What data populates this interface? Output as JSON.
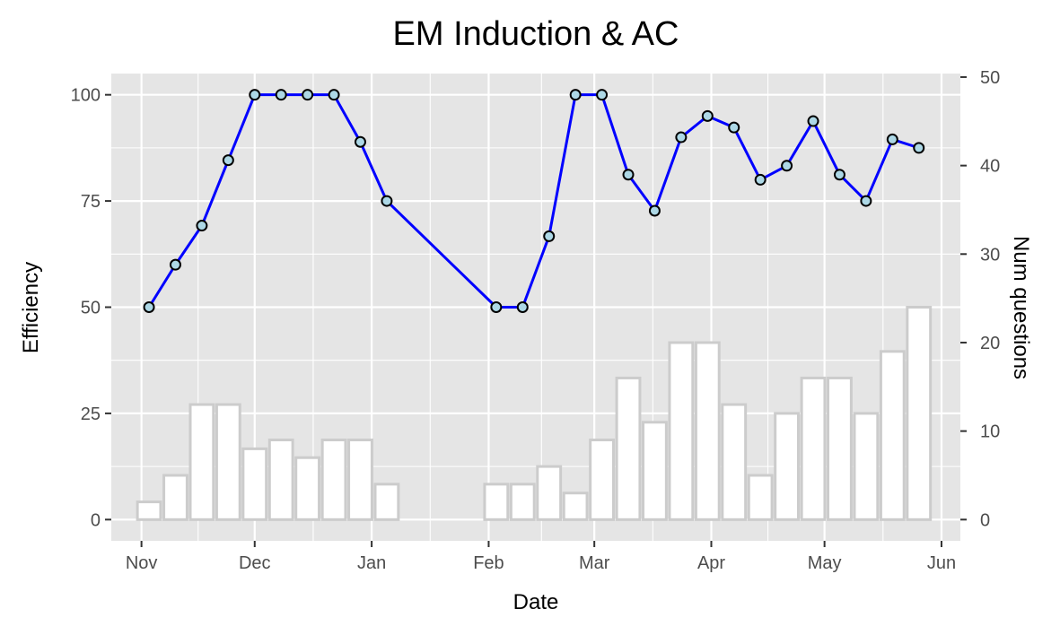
{
  "chart_data": {
    "type": "line+bar",
    "title": "EM Induction & AC",
    "xlabel": "Date",
    "ylabel": "Efficiency",
    "y2label": "Num questions",
    "x_ticks": [
      "Nov",
      "Dec",
      "Jan",
      "Feb",
      "Mar",
      "Apr",
      "May",
      "Jun"
    ],
    "y_ticks": [
      "0",
      "25",
      "50",
      "75",
      "100"
    ],
    "y2_ticks": [
      "0",
      "10",
      "20",
      "30",
      "40",
      "50"
    ],
    "ylim": [
      -5,
      105
    ],
    "y2lim": [
      -2.4,
      50.4
    ],
    "xlim": [
      "2017-10-24",
      "2018-06-06"
    ],
    "grid": true,
    "line_series": {
      "color": "#0000ff",
      "marker_fill": "#add8e6",
      "points": [
        {
          "date": "2017-11-03",
          "value": 50
        },
        {
          "date": "2017-11-10",
          "value": 60
        },
        {
          "date": "2017-11-17",
          "value": 69.2
        },
        {
          "date": "2017-11-24",
          "value": 84.6
        },
        {
          "date": "2017-12-01",
          "value": 100
        },
        {
          "date": "2017-12-08",
          "value": 100
        },
        {
          "date": "2017-12-15",
          "value": 100
        },
        {
          "date": "2017-12-22",
          "value": 100
        },
        {
          "date": "2017-12-29",
          "value": 88.9
        },
        {
          "date": "2018-01-05",
          "value": 75
        },
        {
          "date": "2018-02-03",
          "value": 50
        },
        {
          "date": "2018-02-10",
          "value": 50
        },
        {
          "date": "2018-02-17",
          "value": 66.7
        },
        {
          "date": "2018-02-24",
          "value": 100
        },
        {
          "date": "2018-03-03",
          "value": 100
        },
        {
          "date": "2018-03-10",
          "value": 81.2
        },
        {
          "date": "2018-03-17",
          "value": 72.7
        },
        {
          "date": "2018-03-24",
          "value": 90
        },
        {
          "date": "2018-03-31",
          "value": 95
        },
        {
          "date": "2018-04-07",
          "value": 92.3
        },
        {
          "date": "2018-04-14",
          "value": 80
        },
        {
          "date": "2018-04-21",
          "value": 83.3
        },
        {
          "date": "2018-04-28",
          "value": 93.8
        },
        {
          "date": "2018-05-05",
          "value": 81.2
        },
        {
          "date": "2018-05-12",
          "value": 75
        },
        {
          "date": "2018-05-19",
          "value": 89.5
        },
        {
          "date": "2018-05-26",
          "value": 87.5
        }
      ]
    },
    "bar_series": {
      "fill": "#ffffff",
      "stroke": "#cccccc",
      "bars": [
        {
          "date": "2017-11-03",
          "count": 2
        },
        {
          "date": "2017-11-10",
          "count": 5
        },
        {
          "date": "2017-11-17",
          "count": 13
        },
        {
          "date": "2017-11-24",
          "count": 13
        },
        {
          "date": "2017-12-01",
          "count": 8
        },
        {
          "date": "2017-12-08",
          "count": 9
        },
        {
          "date": "2017-12-15",
          "count": 7
        },
        {
          "date": "2017-12-22",
          "count": 9
        },
        {
          "date": "2017-12-29",
          "count": 9
        },
        {
          "date": "2018-01-05",
          "count": 4
        },
        {
          "date": "2018-02-03",
          "count": 4
        },
        {
          "date": "2018-02-10",
          "count": 4
        },
        {
          "date": "2018-02-17",
          "count": 6
        },
        {
          "date": "2018-02-24",
          "count": 3
        },
        {
          "date": "2018-03-03",
          "count": 9
        },
        {
          "date": "2018-03-10",
          "count": 16
        },
        {
          "date": "2018-03-17",
          "count": 11
        },
        {
          "date": "2018-03-24",
          "count": 20
        },
        {
          "date": "2018-03-31",
          "count": 20
        },
        {
          "date": "2018-04-07",
          "count": 13
        },
        {
          "date": "2018-04-14",
          "count": 5
        },
        {
          "date": "2018-04-21",
          "count": 12
        },
        {
          "date": "2018-04-28",
          "count": 16
        },
        {
          "date": "2018-05-05",
          "count": 16
        },
        {
          "date": "2018-05-12",
          "count": 12
        },
        {
          "date": "2018-05-19",
          "count": 19
        },
        {
          "date": "2018-05-26",
          "count": 24
        }
      ]
    },
    "colors": {
      "panel_background": "#e5e5e5",
      "grid": "#ffffff",
      "tick_label": "#4d4d4d"
    }
  }
}
